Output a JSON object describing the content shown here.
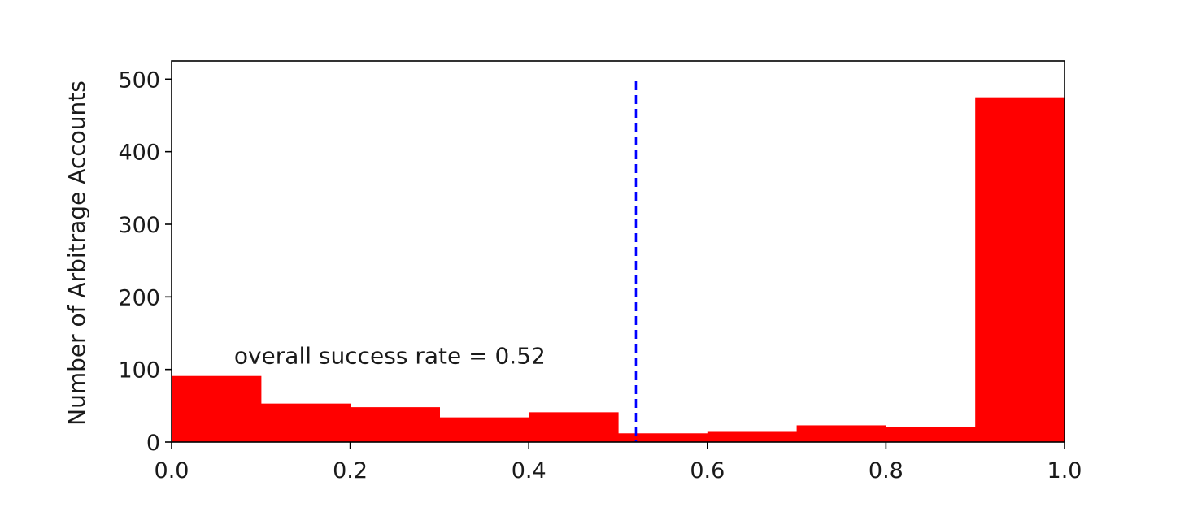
{
  "chart_data": {
    "type": "bar",
    "title": "",
    "xlabel": "",
    "ylabel": "Number of Arbitrage Accounts",
    "xlim": [
      0.0,
      1.0
    ],
    "ylim": [
      0,
      525
    ],
    "grid": false,
    "bin_edges": [
      0.0,
      0.1,
      0.2,
      0.3,
      0.4,
      0.5,
      0.6,
      0.7,
      0.8,
      0.9,
      1.0
    ],
    "values": [
      91,
      53,
      48,
      34,
      41,
      12,
      14,
      23,
      21,
      475
    ],
    "bar_color": "#ff0000",
    "x_ticks": [
      0.0,
      0.2,
      0.4,
      0.6,
      0.8,
      1.0
    ],
    "x_tick_labels": [
      "0.0",
      "0.2",
      "0.4",
      "0.6",
      "0.8",
      "1.0"
    ],
    "y_ticks": [
      0,
      100,
      200,
      300,
      400,
      500
    ],
    "y_tick_labels": [
      "0",
      "100",
      "200",
      "300",
      "400",
      "500"
    ],
    "reference_line": {
      "x": 0.52,
      "y_range": [
        0,
        497
      ],
      "color": "#0000ff",
      "style": "dashed"
    },
    "annotation": {
      "text": "overall success rate = 0.52",
      "x": 0.07,
      "y": 108
    }
  }
}
